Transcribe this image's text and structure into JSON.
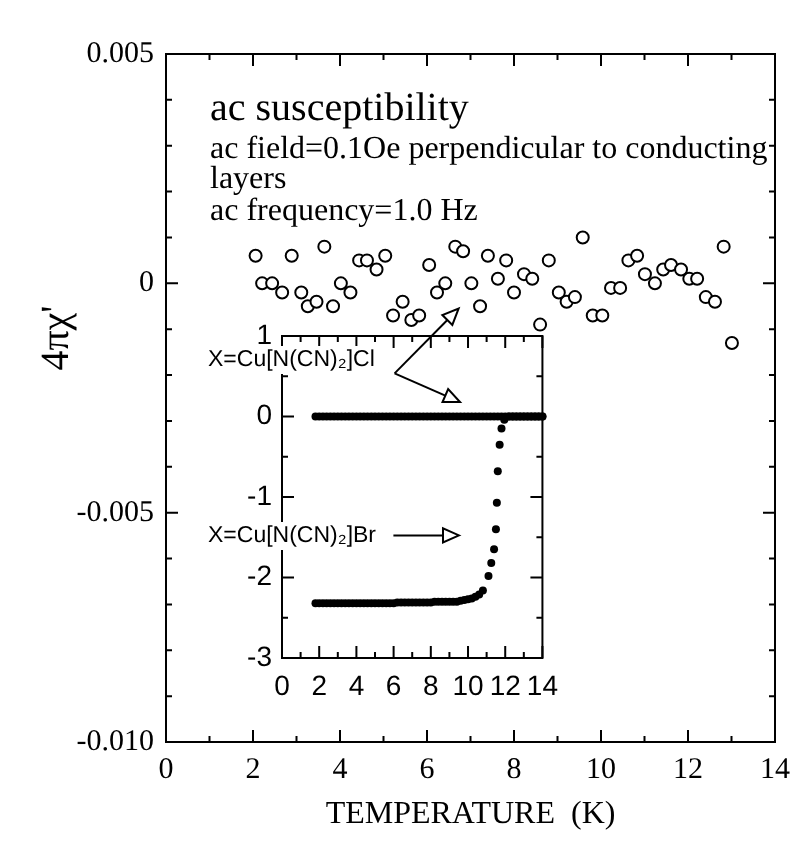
{
  "chart_data": [
    {
      "type": "scatter",
      "title": "ac susceptibility",
      "xlabel": "TEMPERATURE  (K)",
      "ylabel": "4πχ'",
      "annotations": [
        "ac field=0.1Oe perpendicular to conducting layers",
        "ac frequency=1.0 Hz"
      ],
      "x": [
        2.06,
        2.21,
        2.44,
        2.67,
        2.89,
        3.11,
        3.26,
        3.46,
        3.64,
        3.84,
        4.02,
        4.24,
        4.44,
        4.62,
        4.84,
        5.04,
        5.22,
        5.44,
        5.64,
        5.82,
        6.05,
        6.23,
        6.42,
        6.65,
        6.83,
        7.02,
        7.22,
        7.4,
        7.63,
        7.82,
        8.0,
        8.23,
        8.42,
        8.6,
        8.8,
        9.03,
        9.21,
        9.4,
        9.58,
        9.81,
        10.03,
        10.23,
        10.44,
        10.63,
        10.83,
        11.01,
        11.24,
        11.43,
        11.61,
        11.84,
        12.03,
        12.21,
        12.41,
        12.62,
        12.82,
        13.01
      ],
      "values": [
        0.0006,
        0,
        0,
        -0.0002,
        0.0006,
        -0.0002,
        -0.0005,
        -0.0004,
        0.0008,
        -0.0005,
        0,
        -0.0002,
        0.0005,
        0.0005,
        0.0003,
        0.0006,
        -0.0007,
        -0.0004,
        -0.0008,
        -0.0007,
        0.0004,
        -0.0002,
        0,
        0.0008,
        0.0007,
        0,
        -0.0005,
        0.0006,
        0.0001,
        0.0005,
        -0.0002,
        0.0002,
        0.0001,
        -0.0009,
        0.0005,
        -0.0002,
        -0.0004,
        -0.0003,
        0.001,
        -0.0007,
        -0.0007,
        -0.0001,
        -0.0001,
        0.0005,
        0.0006,
        0.0002,
        0,
        0.0003,
        0.0004,
        0.0003,
        0.0001,
        0.0001,
        -0.0003,
        -0.0004,
        0.0008,
        -0.0013
      ],
      "color": "#000000",
      "marker": "circle",
      "xlim": [
        0,
        14
      ],
      "ylim": [
        -0.01,
        0.005
      ],
      "xticks": [
        0,
        {
          "value": 1,
          "label": null
        },
        2,
        {
          "value": 3,
          "label": null
        },
        4,
        {
          "value": 5,
          "label": null
        },
        6,
        {
          "value": 7,
          "label": null
        },
        8,
        {
          "value": 9,
          "label": null
        },
        10,
        {
          "value": 11,
          "label": null
        },
        12,
        {
          "value": 13,
          "label": null
        },
        14
      ],
      "yticks": [
        {
          "value": -0.01,
          "label": "-0.010"
        },
        {
          "value": -0.009,
          "label": null
        },
        {
          "value": -0.008,
          "label": null
        },
        {
          "value": -0.007,
          "label": null
        },
        {
          "value": -0.006,
          "label": null
        },
        {
          "value": -0.005,
          "label": "-0.005"
        },
        {
          "value": -0.004,
          "label": null
        },
        {
          "value": -0.003,
          "label": null
        },
        {
          "value": -0.002,
          "label": null
        },
        {
          "value": -0.001,
          "label": null
        },
        0,
        {
          "value": 0.001,
          "label": null
        },
        {
          "value": 0.002,
          "label": null
        },
        {
          "value": 0.003,
          "label": null
        },
        {
          "value": 0.004,
          "label": null
        },
        0.005
      ]
    },
    {
      "type": "scatter",
      "marker": "circle",
      "legend": "left",
      "xlim": [
        0,
        14
      ],
      "ylim": [
        -3,
        1
      ],
      "xticks": [
        0,
        {
          "value": 1,
          "label": null
        },
        2,
        {
          "value": 3,
          "label": null
        },
        4,
        {
          "value": 5,
          "label": null
        },
        6,
        {
          "value": 7,
          "label": null
        },
        8,
        {
          "value": 9,
          "label": null
        },
        10,
        {
          "value": 11,
          "label": null
        },
        12,
        {
          "value": 13,
          "label": null
        },
        14
      ],
      "yticks": [
        -3,
        {
          "value": -2.5,
          "label": null
        },
        -2,
        {
          "value": -1.5,
          "label": null
        },
        -1,
        {
          "value": -0.5,
          "label": null
        },
        0,
        {
          "value": 0.5,
          "label": null
        },
        1
      ],
      "series": [
        {
          "name": "X=Cu[N(CN)₂]Cl",
          "color": "#000000",
          "x": [
            1.8,
            2,
            2.2,
            2.4,
            2.6,
            2.8,
            3,
            3.2,
            3.4,
            3.6,
            3.8,
            4,
            4.2,
            4.4,
            4.6,
            4.8,
            5,
            5.2,
            5.4,
            5.6,
            5.8,
            6,
            6.2,
            6.4,
            6.6,
            6.8,
            7,
            7.2,
            7.4,
            7.6,
            7.8,
            8,
            8.2,
            8.4,
            8.6,
            8.8,
            9,
            9.2,
            9.4,
            9.6,
            9.8,
            10,
            10.2,
            10.4,
            10.6,
            10.8,
            11,
            11.2,
            11.4,
            11.6,
            11.8,
            12,
            12.2,
            12.4,
            12.6,
            12.8,
            13,
            13.2,
            13.4,
            13.6,
            13.8,
            14
          ],
          "values": [
            0,
            0,
            0,
            0,
            0,
            0,
            0,
            0,
            0,
            0,
            0,
            0,
            0,
            0,
            0,
            0,
            0,
            0,
            0,
            0,
            0,
            0,
            0,
            0,
            0,
            0,
            0,
            0,
            0,
            0,
            0,
            0,
            0,
            0,
            0,
            0,
            0,
            0,
            0,
            0,
            0,
            0,
            0,
            0,
            0,
            0,
            0,
            0,
            0,
            0,
            0,
            0,
            0,
            0,
            0,
            0,
            0,
            0,
            0,
            0,
            0,
            0
          ]
        },
        {
          "name": "X=Cu[N(CN)₂]Br",
          "color": "#000000",
          "x": [
            1.8,
            2,
            2.2,
            2.4,
            2.6,
            2.8,
            3,
            3.2,
            3.4,
            3.6,
            3.8,
            4,
            4.2,
            4.4,
            4.6,
            4.8,
            5,
            5.2,
            5.4,
            5.6,
            5.8,
            6,
            6.2,
            6.4,
            6.6,
            6.8,
            7,
            7.2,
            7.4,
            7.6,
            7.8,
            8,
            8.2,
            8.4,
            8.6,
            8.8,
            9,
            9.2,
            9.4,
            9.6,
            9.8,
            10,
            10.2,
            10.4,
            10.6,
            10.8,
            11.1,
            11.25,
            11.4,
            11.5,
            11.55,
            11.6,
            11.7,
            11.8,
            11.95,
            12.2,
            12.4,
            12.6,
            12.8,
            13,
            13.2,
            13.4,
            13.6,
            13.8,
            14
          ],
          "values": [
            -2.32,
            -2.32,
            -2.32,
            -2.32,
            -2.32,
            -2.32,
            -2.32,
            -2.32,
            -2.32,
            -2.32,
            -2.32,
            -2.32,
            -2.32,
            -2.32,
            -2.32,
            -2.32,
            -2.32,
            -2.32,
            -2.32,
            -2.32,
            -2.32,
            -2.32,
            -2.31,
            -2.31,
            -2.31,
            -2.31,
            -2.31,
            -2.31,
            -2.31,
            -2.31,
            -2.31,
            -2.31,
            -2.3,
            -2.3,
            -2.3,
            -2.3,
            -2.3,
            -2.3,
            -2.3,
            -2.29,
            -2.28,
            -2.27,
            -2.26,
            -2.24,
            -2.21,
            -2.16,
            -1.98,
            -1.82,
            -1.65,
            -1.4,
            -1.07,
            -0.68,
            -0.35,
            -0.15,
            -0.04,
            0,
            0,
            0,
            0,
            0,
            0,
            0,
            0,
            0,
            0
          ]
        }
      ]
    }
  ]
}
